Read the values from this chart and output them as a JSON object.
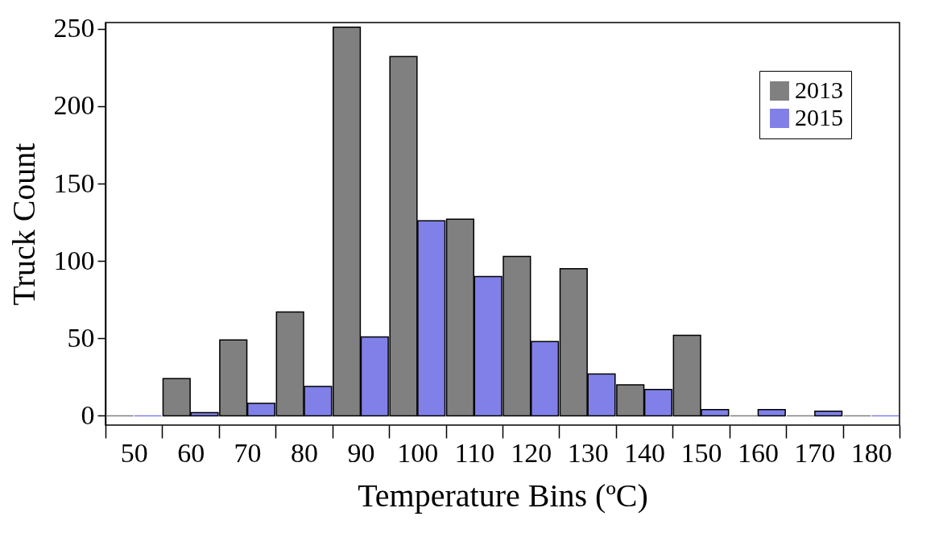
{
  "chart_data": {
    "type": "bar",
    "xlabel": "Temperature Bins (ºC)",
    "ylabel": "Truck Count",
    "categories": [
      "50",
      "60",
      "70",
      "80",
      "90",
      "100",
      "110",
      "120",
      "130",
      "140",
      "150",
      "160",
      "170",
      "180"
    ],
    "series": [
      {
        "name": "2013",
        "color": "#808080",
        "values": [
          0,
          24,
          49,
          67,
          251,
          232,
          127,
          103,
          95,
          20,
          52,
          0,
          0,
          0
        ]
      },
      {
        "name": "2015",
        "color": "#8080e8",
        "values": [
          0,
          2,
          8,
          19,
          51,
          126,
          90,
          48,
          27,
          17,
          4,
          4,
          3,
          0
        ]
      }
    ],
    "ylim": [
      -6,
      254
    ],
    "yticks": [
      0,
      50,
      100,
      150,
      200,
      250
    ],
    "grid": false,
    "legend": "top right"
  }
}
